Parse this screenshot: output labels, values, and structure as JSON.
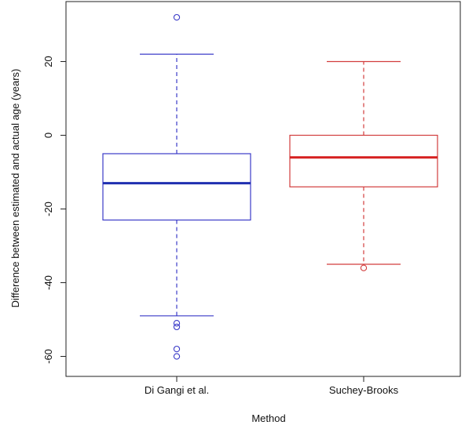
{
  "chart_data": {
    "type": "boxplot",
    "xlabel": "Method",
    "ylabel": "Difference between estimated and actual age (years)",
    "ylim": [
      -64,
      34
    ],
    "yticks": [
      -60,
      -40,
      -20,
      0,
      20
    ],
    "yticklabels": [
      "-60",
      "-40",
      "-20",
      "0",
      "20"
    ],
    "grid": false,
    "categories": [
      "Di Gangi et al.",
      "Suchey-Brooks"
    ],
    "boxes": [
      {
        "name": "Di Gangi et al.",
        "color": "#3b3bc8",
        "median_color": "#1f2fb0",
        "whisker_low": -49,
        "q1": -23,
        "median": -13,
        "q3": -5,
        "whisker_high": 22,
        "outliers": [
          32,
          -51,
          -52,
          -58,
          -60
        ]
      },
      {
        "name": "Suchey-Brooks",
        "color": "#d23c3c",
        "median_color": "#d61f1f",
        "whisker_low": -35,
        "q1": -14,
        "median": -6,
        "q3": 0,
        "whisker_high": 20,
        "outliers": [
          -36
        ]
      }
    ]
  }
}
